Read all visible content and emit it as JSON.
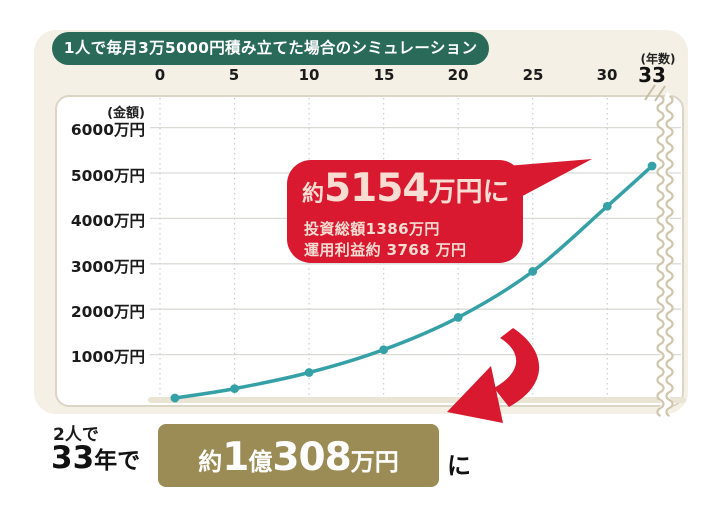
{
  "banner": {
    "text": "1人で毎月3万5000円積み立てた場合のシミュレーション"
  },
  "axes": {
    "x_unit": "(年数)",
    "y_unit": "(金額)",
    "x_ticks": [
      "0",
      "5",
      "10",
      "15",
      "20",
      "25",
      "30"
    ],
    "x_final_tick": "33",
    "y_ticks": [
      "6000万円",
      "5000万円",
      "4000万円",
      "3000万円",
      "2000万円",
      "1000万円"
    ]
  },
  "chart_data": {
    "type": "line",
    "title": "1人で毎月3万5000円積み立てた場合のシミュレーション",
    "xlabel": "年数",
    "ylabel": "金額(万円)",
    "x": [
      1,
      5,
      10,
      15,
      20,
      25,
      30,
      33
    ],
    "values": [
      43,
      251,
      605,
      1107,
      1820,
      2832,
      4268,
      5154
    ],
    "x_tick_values": [
      0,
      5,
      10,
      15,
      20,
      25,
      30
    ],
    "y_tick_values": [
      1000,
      2000,
      3000,
      4000,
      5000,
      6000
    ],
    "xlim": [
      0,
      35
    ],
    "ylim": [
      0,
      6600
    ],
    "line_color": "#35a1a7",
    "grid": "horizontal solid lines each 1000万円, vertical dotted lines each 5 years",
    "axis_break": "wavy break mark at right edge beyond year 33",
    "annotations": [
      "約5154万円に",
      "投資総額1386万円",
      "運用利益約 3768 万円"
    ]
  },
  "callout": {
    "headline_prefix": "約",
    "headline_value": "5154",
    "headline_suffix": "万円に",
    "line2": "投資総額1386万円",
    "line3": "運用利益約 3768 万円"
  },
  "footer": {
    "line1": "2人で",
    "years": "33",
    "years_suffix": "年で",
    "box_prefix": "約",
    "box_big1": "1",
    "box_mid": "億",
    "box_big2": "308",
    "box_unit": "万円",
    "after_box": "に"
  },
  "colors": {
    "panel_cream": "#f4f0e5",
    "card_border": "#dbd5c6",
    "banner_green": "#2a6a59",
    "line_teal": "#35a1a7",
    "callout_red": "#d8192f",
    "callout_text_pink": "#f9dcd2",
    "result_gold": "#9b8b54",
    "axis_beige": "#e9e4d3",
    "squiggle_tan": "#cfc6ac"
  }
}
